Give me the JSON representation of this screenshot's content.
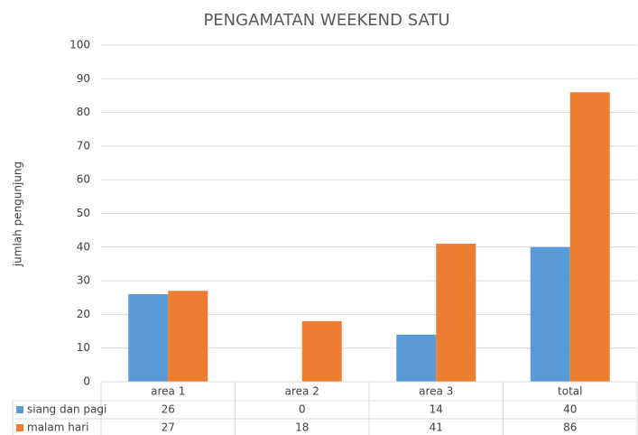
{
  "chart_data": {
    "type": "bar",
    "title": "PENGAMATAN WEEKEND SATU",
    "y_label": "jumlah pengunjung",
    "categories": [
      "area 1",
      "area 2",
      "area 3",
      "total"
    ],
    "series": [
      {
        "name": "siang dan pagi",
        "color": "#5b9bd5",
        "values": [
          26,
          0,
          14,
          40
        ]
      },
      {
        "name": "malam hari",
        "color": "#ed7d31",
        "values": [
          27,
          18,
          41,
          86
        ]
      }
    ],
    "ylim": [
      0,
      100
    ],
    "yticks": [
      0,
      10,
      20,
      30,
      40,
      50,
      60,
      70,
      80,
      90,
      100
    ],
    "grid": true,
    "data_table": true
  }
}
